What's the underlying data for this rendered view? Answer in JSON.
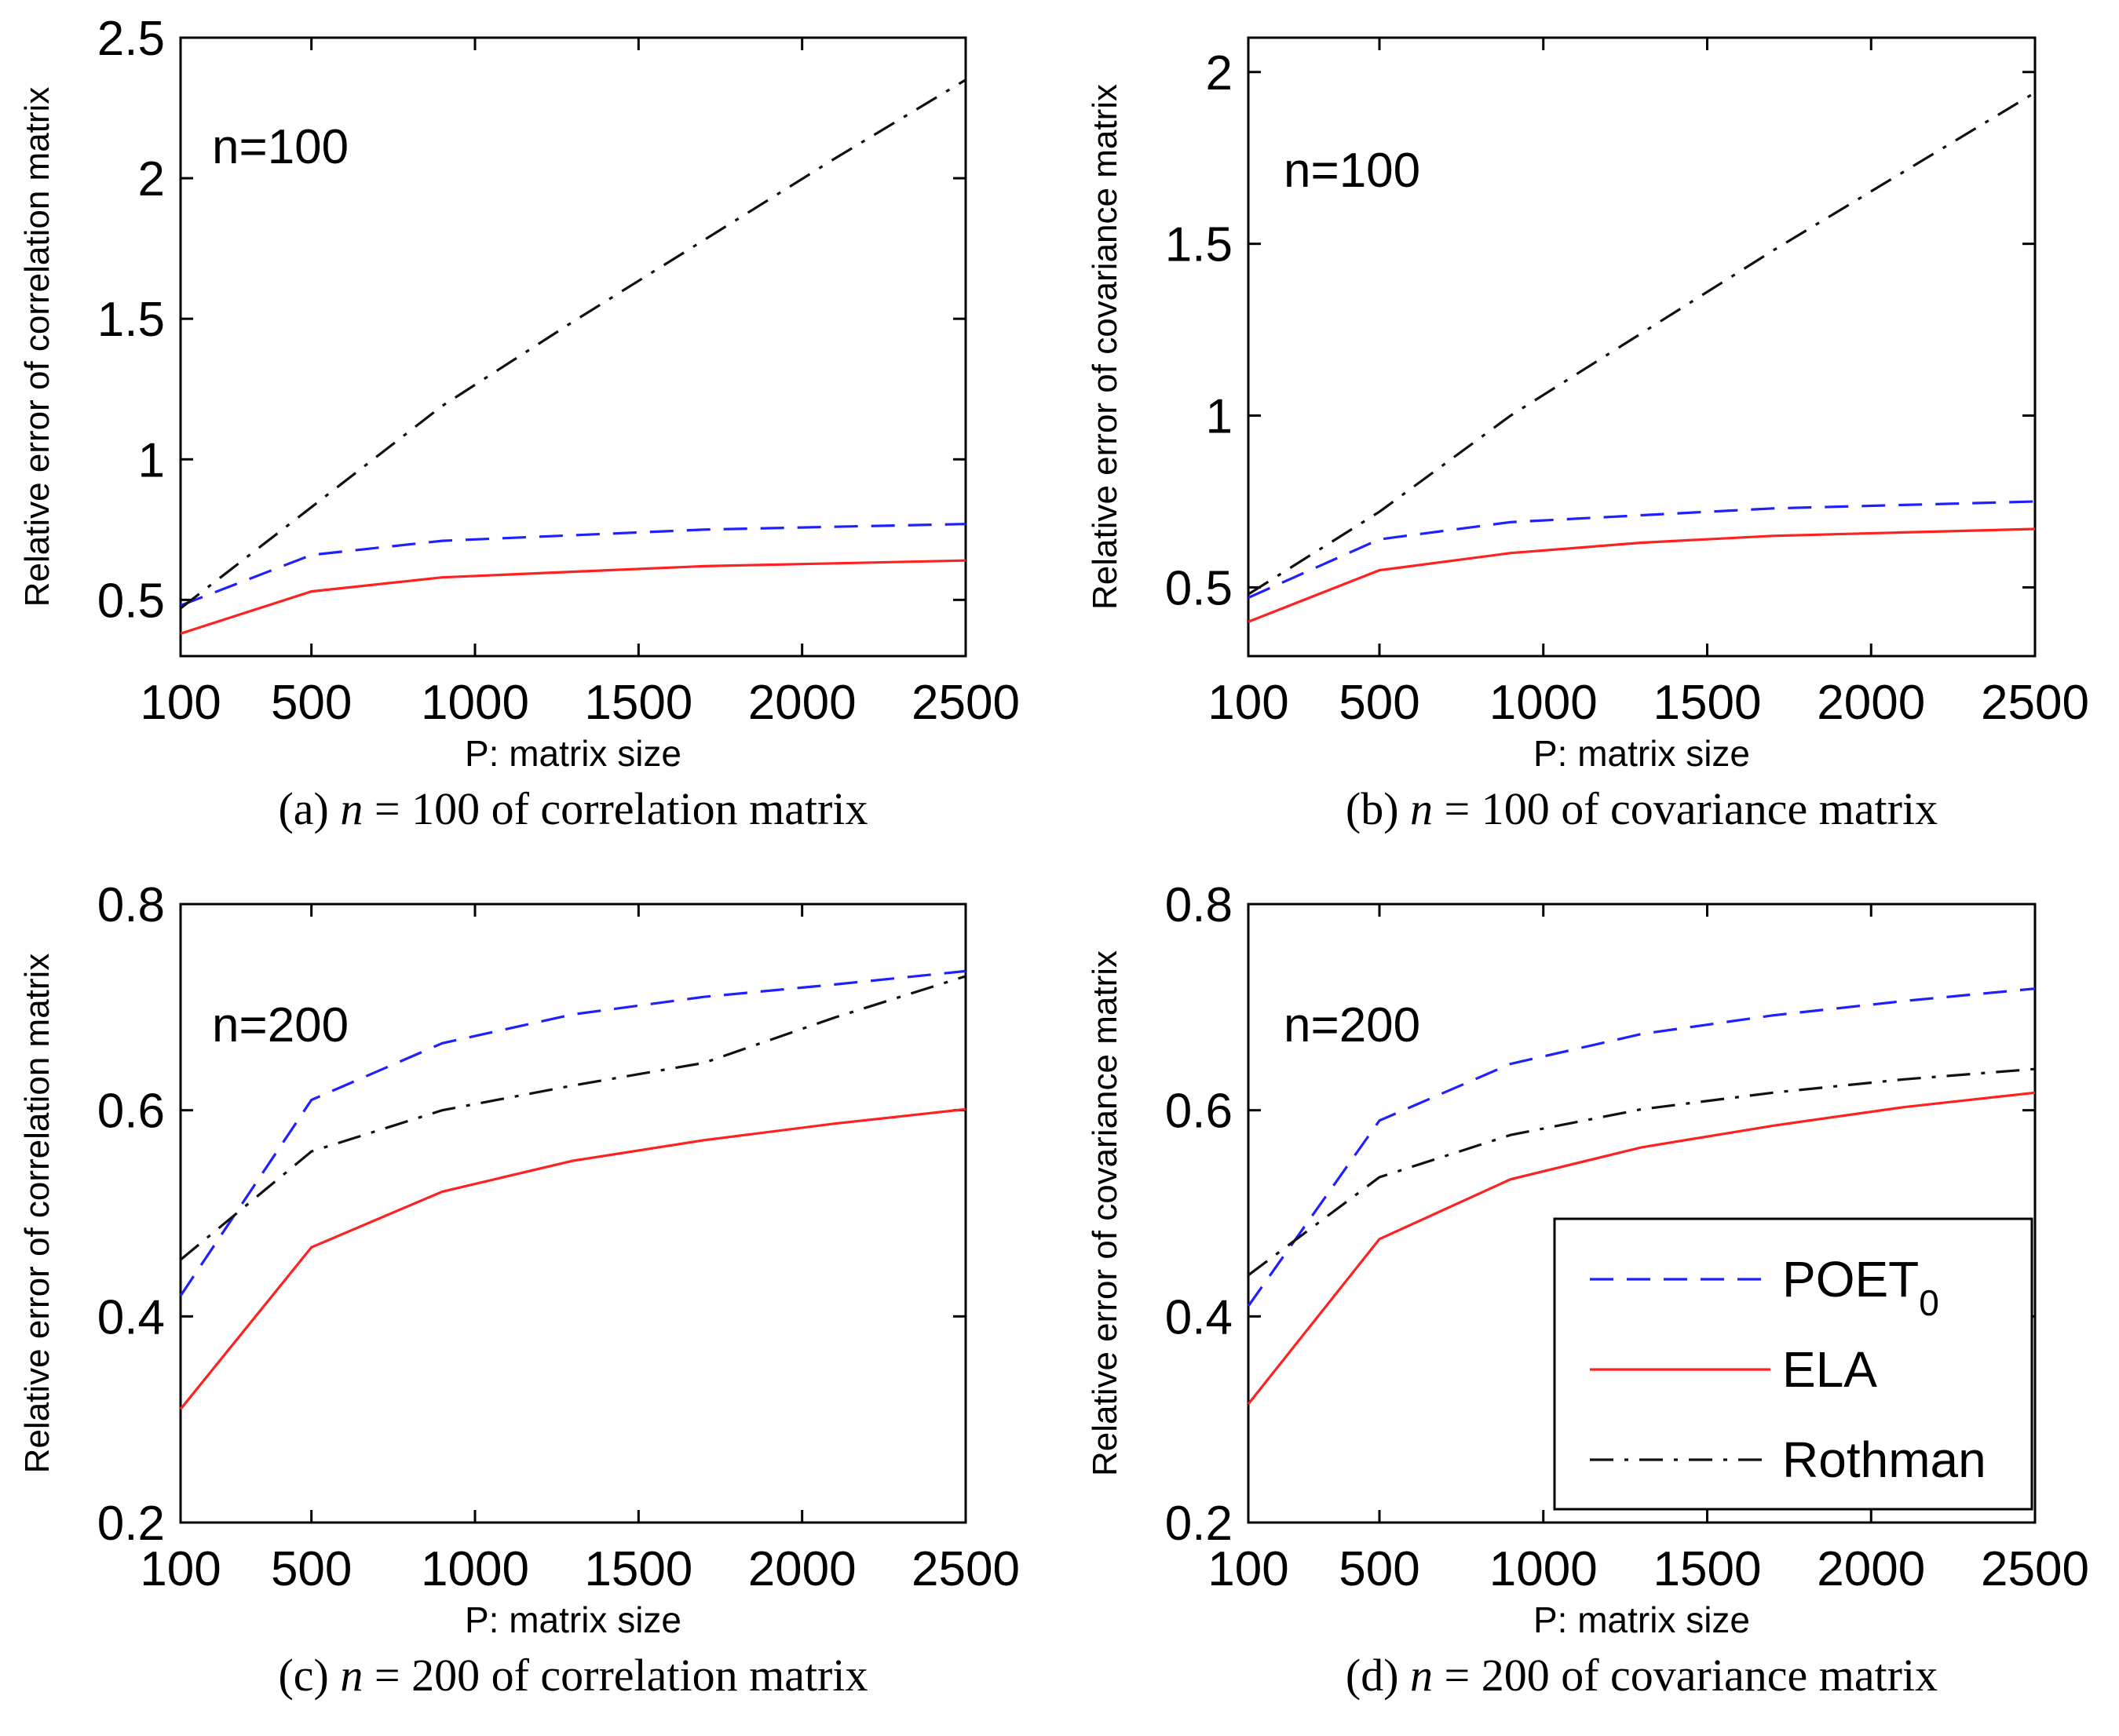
{
  "chart_data": [
    {
      "type": "line",
      "caption": "(a) n = 100 of correlation matrix",
      "caption_parts": {
        "prefix": "(a) ",
        "italic": "n",
        "suffix": " = 100 of correlation matrix"
      },
      "annotation": "n=100",
      "xlabel": "P: matrix size",
      "ylabel": "Relative error of correlation matrix",
      "x_ticks": [
        "100",
        "500",
        "1000",
        "1500",
        "2000",
        "2500"
      ],
      "y_ticks": [
        "0.5",
        "1",
        "1.5",
        "2",
        "2.5"
      ],
      "xlim": [
        100,
        2500
      ],
      "ylim": [
        0.3,
        2.5
      ],
      "x": [
        100,
        500,
        900,
        1300,
        1700,
        2100,
        2500
      ],
      "series": [
        {
          "name": "POET0",
          "color": "#1f1fff",
          "dash": "dash",
          "values": [
            0.48,
            0.66,
            0.71,
            0.73,
            0.75,
            0.76,
            0.77
          ]
        },
        {
          "name": "ELA",
          "color": "#ff2020",
          "dash": "solid",
          "values": [
            0.38,
            0.53,
            0.58,
            0.6,
            0.62,
            0.63,
            0.64
          ]
        },
        {
          "name": "Rothman",
          "color": "#111111",
          "dash": "dashdot",
          "values": [
            0.47,
            0.83,
            1.19,
            1.49,
            1.78,
            2.07,
            2.35
          ]
        }
      ]
    },
    {
      "type": "line",
      "caption": "(b) n = 100 of covariance matrix",
      "caption_parts": {
        "prefix": "(b) ",
        "italic": "n",
        "suffix": " = 100 of covariance matrix"
      },
      "annotation": "n=100",
      "xlabel": "P: matrix size",
      "ylabel": "Relative error of covariance matrix",
      "x_ticks": [
        "100",
        "500",
        "1000",
        "1500",
        "2000",
        "2500"
      ],
      "y_ticks": [
        "0.5",
        "1",
        "1.5",
        "2"
      ],
      "xlim": [
        100,
        2500
      ],
      "ylim": [
        0.3,
        2.1
      ],
      "x": [
        100,
        500,
        900,
        1300,
        1700,
        2100,
        2500
      ],
      "series": [
        {
          "name": "POET0",
          "color": "#1f1fff",
          "dash": "dash",
          "values": [
            0.47,
            0.64,
            0.69,
            0.71,
            0.73,
            0.74,
            0.75
          ]
        },
        {
          "name": "ELA",
          "color": "#ff2020",
          "dash": "solid",
          "values": [
            0.4,
            0.55,
            0.6,
            0.63,
            0.65,
            0.66,
            0.67
          ]
        },
        {
          "name": "Rothman",
          "color": "#111111",
          "dash": "dashdot",
          "values": [
            0.48,
            0.72,
            1.0,
            1.24,
            1.48,
            1.71,
            1.94
          ]
        }
      ]
    },
    {
      "type": "line",
      "caption": "(c) n = 200 of correlation matrix",
      "caption_parts": {
        "prefix": "(c) ",
        "italic": "n",
        "suffix": " = 200 of correlation matrix"
      },
      "annotation": "n=200",
      "xlabel": "P: matrix size",
      "ylabel": "Relative error of correlation matrix",
      "x_ticks": [
        "100",
        "500",
        "1000",
        "1500",
        "2000",
        "2500"
      ],
      "y_ticks": [
        "0.2",
        "0.4",
        "0.6",
        "0.8"
      ],
      "xlim": [
        100,
        2500
      ],
      "ylim": [
        0.2,
        0.8
      ],
      "x": [
        100,
        500,
        900,
        1300,
        1700,
        2100,
        2500
      ],
      "series": [
        {
          "name": "POET0",
          "color": "#1f1fff",
          "dash": "dash",
          "values": [
            0.42,
            0.61,
            0.665,
            0.693,
            0.71,
            0.722,
            0.735
          ]
        },
        {
          "name": "ELA",
          "color": "#ff2020",
          "dash": "solid",
          "values": [
            0.31,
            0.467,
            0.521,
            0.551,
            0.571,
            0.587,
            0.601
          ]
        },
        {
          "name": "Rothman",
          "color": "#111111",
          "dash": "dashdot",
          "values": [
            0.455,
            0.56,
            0.6,
            0.624,
            0.646,
            0.69,
            0.73
          ]
        }
      ]
    },
    {
      "type": "line",
      "caption": "(d) n = 200 of covariance matrix",
      "caption_parts": {
        "prefix": "(d) ",
        "italic": "n",
        "suffix": " = 200 of covariance matrix"
      },
      "annotation": "n=200",
      "xlabel": "P: matrix size",
      "ylabel": "Relative error of covariance matrix",
      "x_ticks": [
        "100",
        "500",
        "1000",
        "1500",
        "2000",
        "2500"
      ],
      "y_ticks": [
        "0.2",
        "0.4",
        "0.6",
        "0.8"
      ],
      "xlim": [
        100,
        2500
      ],
      "ylim": [
        0.2,
        0.8
      ],
      "x": [
        100,
        500,
        900,
        1300,
        1700,
        2100,
        2500
      ],
      "series": [
        {
          "name": "POET0",
          "color": "#1f1fff",
          "dash": "dash",
          "values": [
            0.41,
            0.59,
            0.645,
            0.674,
            0.692,
            0.706,
            0.718
          ]
        },
        {
          "name": "ELA",
          "color": "#ff2020",
          "dash": "solid",
          "values": [
            0.315,
            0.475,
            0.533,
            0.564,
            0.585,
            0.603,
            0.617
          ]
        },
        {
          "name": "Rothman",
          "color": "#111111",
          "dash": "dashdot",
          "values": [
            0.44,
            0.535,
            0.576,
            0.601,
            0.617,
            0.63,
            0.64
          ]
        }
      ],
      "legend": {
        "position": "bottom-right",
        "entries": [
          {
            "main": "POET",
            "sub": "0",
            "color": "#1f1fff",
            "dash": "dash"
          },
          {
            "main": "ELA",
            "sub": "",
            "color": "#ff2020",
            "dash": "solid"
          },
          {
            "main": "Rothman",
            "sub": "",
            "color": "#111111",
            "dash": "dashdot"
          }
        ]
      }
    }
  ]
}
